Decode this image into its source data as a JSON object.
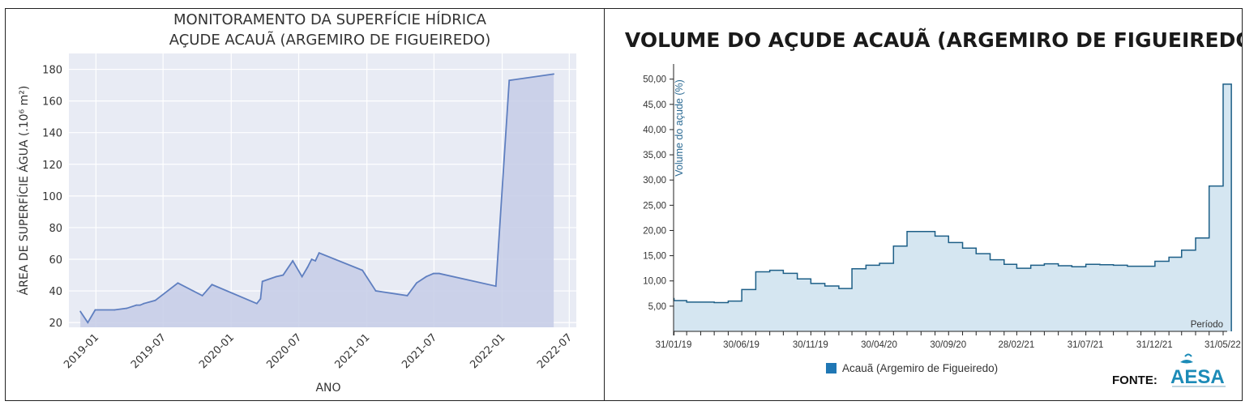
{
  "chart_data": [
    {
      "type": "area",
      "title": [
        "MONITORAMENTO DA SUPERFÍCIE HÍDRICA",
        "AÇUDE ACAUÃ (ARGEMIRO DE FIGUEIREDO)"
      ],
      "xlabel": "ANO",
      "ylabel": "ÁREA DE SUPERFÍCIE ÁGUA (.10⁶ m²)",
      "ylim": [
        17,
        190
      ],
      "yticks": [
        20,
        40,
        60,
        80,
        100,
        120,
        140,
        160,
        180
      ],
      "xlim": [
        "2018-10-20",
        "2022-07-20"
      ],
      "xticks": [
        {
          "date": "2019-01-01",
          "label": "2019-01"
        },
        {
          "date": "2019-07-01",
          "label": "2019-07"
        },
        {
          "date": "2020-01-01",
          "label": "2020-01"
        },
        {
          "date": "2020-07-01",
          "label": "2020-07"
        },
        {
          "date": "2021-01-01",
          "label": "2021-01"
        },
        {
          "date": "2021-07-01",
          "label": "2021-07"
        },
        {
          "date": "2022-01-01",
          "label": "2022-01"
        },
        {
          "date": "2022-07-01",
          "label": "2022-07"
        }
      ],
      "grid": true,
      "series": [
        {
          "points": [
            [
              "2018-11-20",
              27
            ],
            [
              "2018-12-10",
              20
            ],
            [
              "2018-12-30",
              28
            ],
            [
              "2019-02-20",
              28
            ],
            [
              "2019-03-25",
              29
            ],
            [
              "2019-04-20",
              31
            ],
            [
              "2019-04-30",
              31
            ],
            [
              "2019-05-10",
              32
            ],
            [
              "2019-06-10",
              34
            ],
            [
              "2019-08-10",
              45
            ],
            [
              "2019-10-15",
              37
            ],
            [
              "2019-11-10",
              44
            ],
            [
              "2020-03-10",
              32
            ],
            [
              "2020-03-20",
              35
            ],
            [
              "2020-03-25",
              46
            ],
            [
              "2020-05-01",
              49
            ],
            [
              "2020-05-20",
              50
            ],
            [
              "2020-06-15",
              59
            ],
            [
              "2020-07-10",
              49
            ],
            [
              "2020-07-25",
              55
            ],
            [
              "2020-08-05",
              60
            ],
            [
              "2020-08-15",
              59
            ],
            [
              "2020-08-25",
              64
            ],
            [
              "2020-12-20",
              53
            ],
            [
              "2021-01-25",
              40
            ],
            [
              "2021-04-20",
              37
            ],
            [
              "2021-05-15",
              45
            ],
            [
              "2021-06-10",
              49
            ],
            [
              "2021-06-30",
              51
            ],
            [
              "2021-07-15",
              51
            ],
            [
              "2021-12-15",
              43
            ],
            [
              "2022-01-20",
              173
            ],
            [
              "2022-05-20",
              177
            ]
          ]
        }
      ]
    },
    {
      "type": "area",
      "title": "VOLUME DO AÇUDE ACAUÃ (ARGEMIRO DE FIGUEIREDO)",
      "xlabel": "Período",
      "ylabel": "Volume do açude (%)",
      "ylim": [
        0,
        53
      ],
      "yticks": [
        5,
        10,
        15,
        20,
        25,
        30,
        35,
        40,
        45,
        50
      ],
      "ytick_labels": [
        "5,00",
        "10,00",
        "15,00",
        "20,00",
        "25,00",
        "30,00",
        "35,00",
        "40,00",
        "45,00",
        "50,00"
      ],
      "xticks": [
        {
          "date": "2019-01-31",
          "label": "31/01/19"
        },
        {
          "date": "2019-06-30",
          "label": "30/06/19"
        },
        {
          "date": "2019-11-30",
          "label": "30/11/19"
        },
        {
          "date": "2020-04-30",
          "label": "30/04/20"
        },
        {
          "date": "2020-09-30",
          "label": "30/09/20"
        },
        {
          "date": "2021-02-28",
          "label": "28/02/21"
        },
        {
          "date": "2021-07-31",
          "label": "31/07/21"
        },
        {
          "date": "2021-12-31",
          "label": "31/12/21"
        },
        {
          "date": "2022-05-31",
          "label": "31/05/22"
        }
      ],
      "xlim": [
        "2019-01-31",
        "2022-06-10"
      ],
      "step": true,
      "series": [
        {
          "name": "Acauã (Argemiro de Figueiredo)",
          "color": "#1f77b4",
          "fill": "#d5e6f1",
          "line": "#1d5f87",
          "months": [
            "2019-01",
            "2019-02",
            "2019-03",
            "2019-04",
            "2019-05",
            "2019-06",
            "2019-07",
            "2019-08",
            "2019-09",
            "2019-10",
            "2019-11",
            "2019-12",
            "2020-01",
            "2020-02",
            "2020-03",
            "2020-04",
            "2020-05",
            "2020-06",
            "2020-07",
            "2020-08",
            "2020-09",
            "2020-10",
            "2020-11",
            "2020-12",
            "2021-01",
            "2021-02",
            "2021-03",
            "2021-04",
            "2021-05",
            "2021-06",
            "2021-07",
            "2021-08",
            "2021-09",
            "2021-10",
            "2021-11",
            "2021-12",
            "2022-01",
            "2022-02",
            "2022-03",
            "2022-04",
            "2022-05",
            "2022-06"
          ],
          "values": [
            6.5,
            6.1,
            5.8,
            5.8,
            5.7,
            6.0,
            8.3,
            11.8,
            12.1,
            11.5,
            10.4,
            9.5,
            9.0,
            8.5,
            12.4,
            13.1,
            13.5,
            16.9,
            19.8,
            19.8,
            18.9,
            17.6,
            16.5,
            15.4,
            14.2,
            13.3,
            12.5,
            13.1,
            13.4,
            13.0,
            12.8,
            13.3,
            13.2,
            13.1,
            12.9,
            12.9,
            13.9,
            14.7,
            16.1,
            18.5,
            28.8,
            49.0
          ]
        }
      ],
      "legend": "bottom-center",
      "source_label": "FONTE:",
      "source_logo": "AESA"
    }
  ]
}
